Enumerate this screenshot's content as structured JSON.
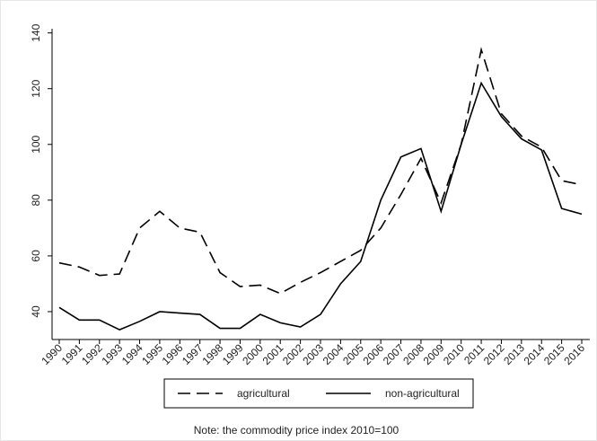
{
  "chart_data": {
    "type": "line",
    "categories": [
      "1990",
      "1991",
      "1992",
      "1993",
      "1994",
      "1995",
      "1996",
      "1997",
      "1998",
      "1999",
      "2000",
      "2001",
      "2002",
      "2003",
      "2004",
      "2005",
      "2006",
      "2007",
      "2008",
      "2009",
      "2010",
      "2011",
      "2012",
      "2013",
      "2014",
      "2015",
      "2016"
    ],
    "series": [
      {
        "name": "agricultural",
        "color": "#000000",
        "line_style": "dashed",
        "values": [
          57.5,
          56,
          53,
          53.5,
          70,
          76,
          70,
          68.5,
          54,
          49,
          49.5,
          46.5,
          50.5,
          54,
          58,
          62,
          70,
          82,
          95,
          79,
          100,
          134,
          111,
          103,
          99,
          87,
          85.5
        ]
      },
      {
        "name": "non-agricultural",
        "color": "#000000",
        "line_style": "solid",
        "values": [
          41.5,
          37,
          37,
          33.5,
          36.5,
          40,
          39.5,
          39,
          34,
          34,
          39,
          36,
          34.5,
          39,
          50,
          58,
          80,
          95.5,
          98.5,
          76,
          100,
          122,
          110,
          102,
          98,
          77,
          75
        ]
      }
    ],
    "ylim": [
      30,
      141.5
    ],
    "yticks": [
      40,
      60,
      80,
      100,
      120,
      140
    ],
    "note": "Note: the commodity price index 2010=100",
    "legend": "bottom"
  }
}
